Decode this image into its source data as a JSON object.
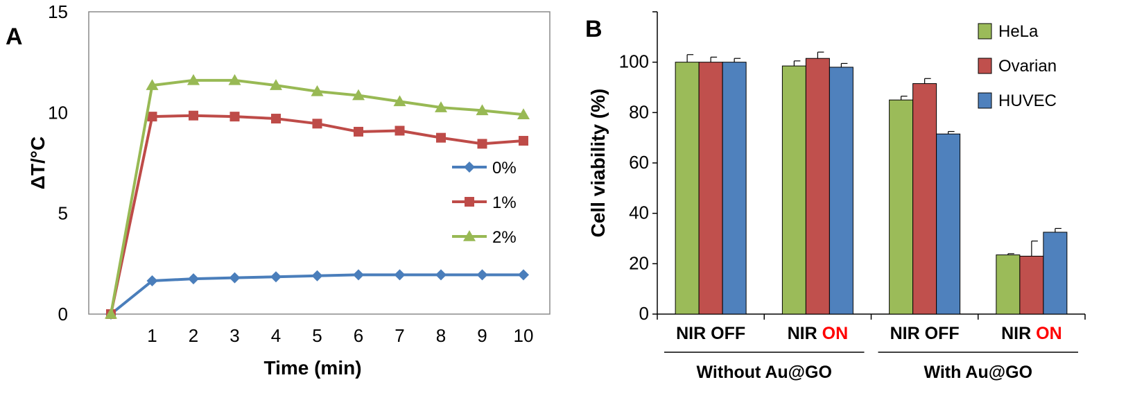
{
  "chart_data": [
    {
      "panel": "A",
      "type": "line",
      "xlabel": "Time (min)",
      "ylabel": "ΔT/°C",
      "ylim": [
        0,
        15
      ],
      "yticks": [
        "0",
        "5",
        "10",
        "15"
      ],
      "x": [
        0,
        1,
        2,
        3,
        4,
        5,
        6,
        7,
        8,
        9,
        10
      ],
      "xticks": [
        "1",
        "2",
        "3",
        "4",
        "5",
        "6",
        "7",
        "8",
        "9",
        "10"
      ],
      "legend_position": "center-right",
      "grid": false,
      "series": [
        {
          "name": "0%",
          "color": "#4a7ebb",
          "marker": "diamond",
          "values": [
            0,
            1.65,
            1.75,
            1.8,
            1.85,
            1.9,
            1.95,
            1.95,
            1.95,
            1.95,
            1.95
          ]
        },
        {
          "name": "1%",
          "color": "#be4b48",
          "marker": "square",
          "values": [
            0,
            9.8,
            9.85,
            9.8,
            9.7,
            9.45,
            9.05,
            9.1,
            8.75,
            8.45,
            8.6
          ]
        },
        {
          "name": "2%",
          "color": "#98b954",
          "marker": "triangle",
          "values": [
            0,
            11.35,
            11.6,
            11.6,
            11.35,
            11.05,
            10.85,
            10.55,
            10.25,
            10.1,
            9.9
          ]
        }
      ]
    },
    {
      "panel": "B",
      "type": "bar",
      "ylabel": "Cell viability (%)",
      "ylim": [
        0,
        120
      ],
      "yticks": [
        "0",
        "20",
        "40",
        "60",
        "80",
        "100"
      ],
      "legend_position": "top-right",
      "grid": false,
      "categories": [
        {
          "prefix": "NIR ",
          "state": "OFF",
          "highlight": false
        },
        {
          "prefix": "NIR ",
          "state": "ON",
          "highlight": true
        },
        {
          "prefix": "NIR ",
          "state": "OFF",
          "highlight": false
        },
        {
          "prefix": "NIR ",
          "state": "ON",
          "highlight": true
        }
      ],
      "groups": [
        {
          "label": "Without Au@GO",
          "span": [
            0,
            1
          ]
        },
        {
          "label": "With Au@GO",
          "span": [
            2,
            3
          ]
        }
      ],
      "highlight_color": "#ff0000",
      "series": [
        {
          "name": "HeLa",
          "color": "#9bbb59",
          "values": [
            100,
            98.5,
            85,
            23.5
          ],
          "errors": [
            3,
            2,
            1.5,
            0.5
          ]
        },
        {
          "name": "Ovarian",
          "color": "#c0504d",
          "values": [
            100,
            101.5,
            91.5,
            23
          ],
          "errors": [
            2,
            2.5,
            2,
            6
          ]
        },
        {
          "name": "HUVEC",
          "color": "#4f81bd",
          "values": [
            100,
            98,
            71.5,
            32.5
          ],
          "errors": [
            1.5,
            1.5,
            1,
            1.5
          ]
        }
      ]
    }
  ]
}
